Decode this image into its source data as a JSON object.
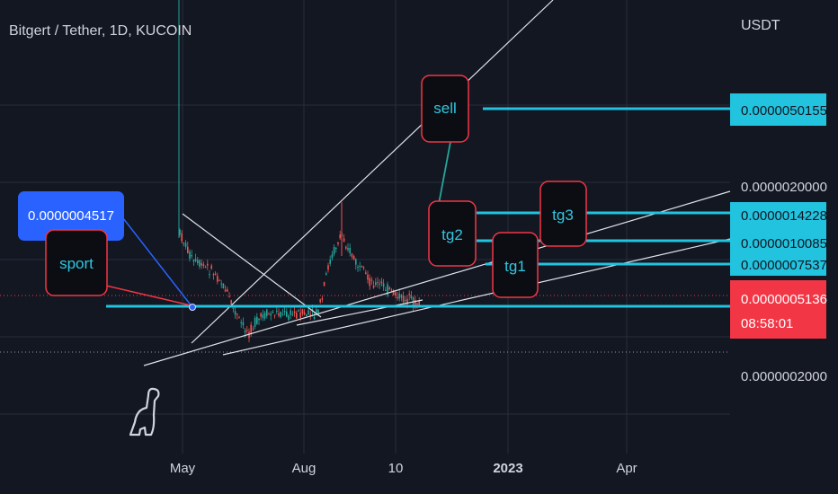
{
  "header": {
    "title": "Bitgert / Tether, 1D, KUCOIN",
    "unit": "USDT"
  },
  "colors": {
    "background": "#131722",
    "up": "#26a69a",
    "down": "#ef5350",
    "level_line": "#22c3df",
    "trendline": "#e0e3eb",
    "current_price": "#f23645",
    "callout_blue": "#2962ff"
  },
  "chart_data": {
    "type": "candlestick",
    "title": "Bitgert / Tether, 1D, KUCOIN",
    "ylabel": "USDT",
    "y_scale": "log",
    "ylim": [
      1.2e-07,
      6.5e-06
    ],
    "x_ticks": [
      "May",
      "Aug",
      "10",
      "2023",
      "Apr"
    ],
    "y_ticks": [
      "0.0000020000",
      "0.0000002000"
    ],
    "price_labels": [
      {
        "name": "sell",
        "value": "0.0000050155"
      },
      {
        "name": "tg3",
        "value": "0.0000014228"
      },
      {
        "name": "tg2",
        "value": "0.0000010085"
      },
      {
        "name": "tg1",
        "value": "0.0000007537"
      },
      {
        "name": "current",
        "value": "0.0000005136",
        "countdown": "08:58:01"
      }
    ],
    "annotations": {
      "entry_price": "0.0000004517",
      "sport": "sport",
      "sell": "sell",
      "tg1": "tg1",
      "tg2": "tg2",
      "tg3": "tg3"
    }
  }
}
